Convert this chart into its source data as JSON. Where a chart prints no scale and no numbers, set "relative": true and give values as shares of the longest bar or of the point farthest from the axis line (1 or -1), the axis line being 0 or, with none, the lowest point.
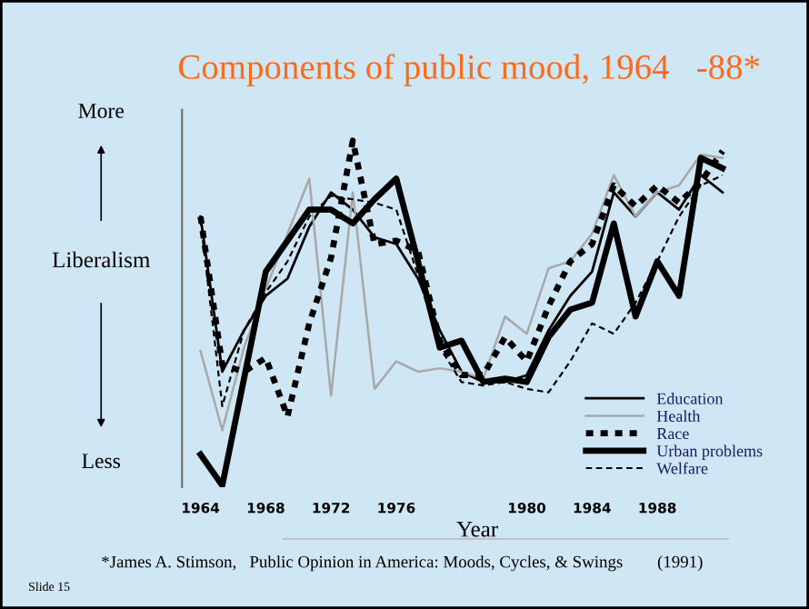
{
  "chart_data": {
    "type": "line",
    "title": "Components of public mood, 1964   -88*",
    "xlabel": "Year",
    "ylabel": "Liberalism",
    "annotations": [
      "More",
      "Less",
      "*James A. Stimson,   Public Opinion in America: Moods, Cycles, & Swings        (1991)",
      "Slide 15"
    ],
    "relative": true,
    "categories": [
      "1964",
      null,
      null,
      "1968",
      null,
      null,
      "1972",
      null,
      null,
      "1976",
      null,
      null,
      null,
      null,
      null,
      "1980",
      null,
      null,
      "1984",
      null,
      null,
      "1988",
      null,
      null,
      null
    ],
    "series": [
      {
        "name": "Education",
        "color": "#000000",
        "line_style": "solid",
        "values": [
          0.78,
          0.33,
          0.45,
          0.55,
          0.6,
          0.75,
          0.85,
          0.8,
          0.72,
          0.7,
          0.6,
          0.45,
          0.33,
          0.3,
          0.3,
          0.32,
          0.45,
          0.55,
          0.62,
          0.85,
          0.78,
          0.85,
          0.8,
          0.9,
          0.85
        ]
      },
      {
        "name": "Health",
        "color": "#a8a8a8",
        "line_style": "solid",
        "values": [
          0.39,
          0.16,
          0.4,
          0.57,
          0.73,
          0.89,
          0.26,
          0.85,
          0.28,
          0.36,
          0.33,
          0.34,
          0.33,
          0.31,
          0.49,
          0.44,
          0.63,
          0.65,
          0.73,
          0.9,
          0.78,
          0.85,
          0.87,
          0.96,
          0.95
        ]
      },
      {
        "name": "Race",
        "color": "#000000",
        "line_style": "dotted",
        "values": [
          0.78,
          0.35,
          0.33,
          0.37,
          0.2,
          0.47,
          0.66,
          1.0,
          0.7,
          0.71,
          0.68,
          0.42,
          0.32,
          0.32,
          0.43,
          0.36,
          0.52,
          0.65,
          0.7,
          0.87,
          0.81,
          0.87,
          0.82,
          0.88,
          0.97
        ]
      },
      {
        "name": "Urban problems",
        "color": "#000000",
        "line_style": "solid",
        "values": [
          0.09,
          0.0,
          0.31,
          0.62,
          0.71,
          0.8,
          0.8,
          0.76,
          0.83,
          0.89,
          0.65,
          0.4,
          0.42,
          0.3,
          0.31,
          0.3,
          0.43,
          0.51,
          0.53,
          0.76,
          0.49,
          0.65,
          0.55,
          0.95,
          0.92
        ]
      },
      {
        "name": "Welfare",
        "color": "#000000",
        "line_style": "dashed",
        "values": [
          0.77,
          0.23,
          0.45,
          0.56,
          0.65,
          0.78,
          0.84,
          0.83,
          0.82,
          0.8,
          0.61,
          0.4,
          0.3,
          0.29,
          0.3,
          0.28,
          0.27,
          0.36,
          0.47,
          0.44,
          0.53,
          0.65,
          0.78,
          0.87,
          0.9
        ]
      }
    ],
    "legend": "bottom right"
  }
}
